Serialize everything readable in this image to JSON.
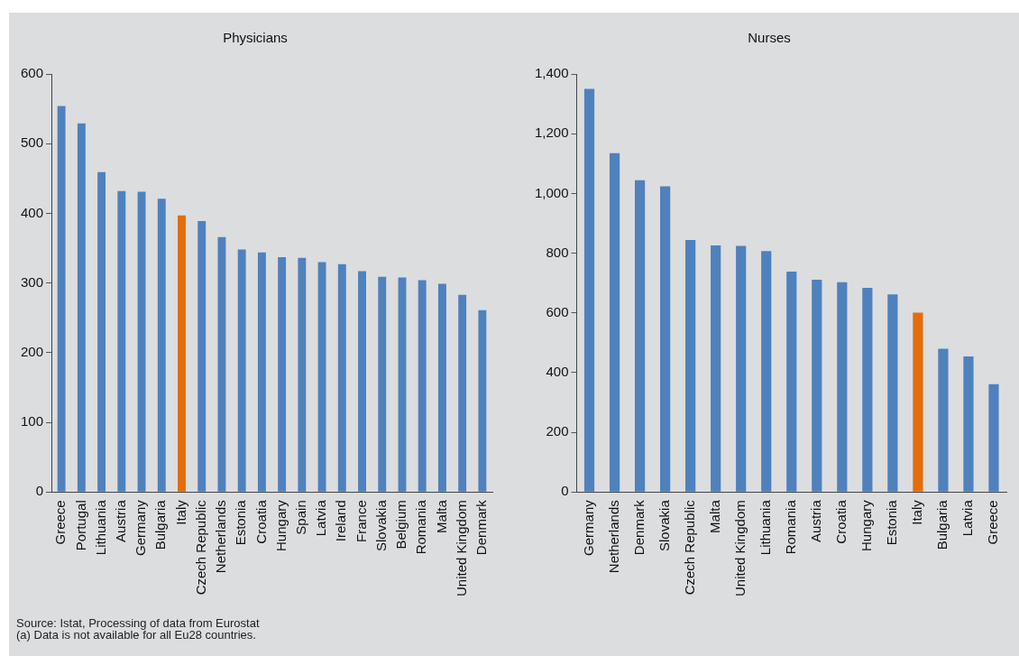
{
  "chart_data": [
    {
      "type": "bar",
      "title": "Physicians",
      "categories": [
        "Greece",
        "Portugal",
        "Lithuania",
        "Austria",
        "Germany",
        "Bulgaria",
        "Italy",
        "Czech Republic",
        "Netherlands",
        "Estonia",
        "Croatia",
        "Hungary",
        "Spain",
        "Latvia",
        "Ireland",
        "France",
        "Slovakia",
        "Belgium",
        "Romania",
        "Malta",
        "United Kingdom",
        "Denmark"
      ],
      "values": [
        554,
        529,
        459,
        432,
        431,
        421,
        397,
        389,
        366,
        348,
        344,
        337,
        336,
        330,
        327,
        317,
        309,
        308,
        304,
        299,
        283,
        261
      ],
      "colors": [
        "#4f81bd",
        "#4f81bd",
        "#4f81bd",
        "#4f81bd",
        "#4f81bd",
        "#4f81bd",
        "#e46c0a",
        "#4f81bd",
        "#4f81bd",
        "#4f81bd",
        "#4f81bd",
        "#4f81bd",
        "#4f81bd",
        "#4f81bd",
        "#4f81bd",
        "#4f81bd",
        "#4f81bd",
        "#4f81bd",
        "#4f81bd",
        "#4f81bd",
        "#4f81bd",
        "#4f81bd"
      ],
      "ylim": [
        0,
        600
      ],
      "yticks": [
        0,
        100,
        200,
        300,
        400,
        500,
        600
      ],
      "grid": false,
      "legend": false,
      "annotations": [
        "Source: Istat, Processing of data from Eurostat",
        "(a) Data is not available for all Eu28 countries."
      ]
    },
    {
      "type": "bar",
      "title": "Nurses",
      "categories": [
        "Germany",
        "Netherlands",
        "Denmark",
        "Slovakia",
        "Czech Republic",
        "Malta",
        "United Kingdom",
        "Lithuania",
        "Romania",
        "Austria",
        "Croatia",
        "Hungary",
        "Estonia",
        "Italy",
        "Bulgaria",
        "Latvia",
        "Greece"
      ],
      "values": [
        1350,
        1135,
        1044,
        1024,
        844,
        826,
        824,
        807,
        738,
        711,
        703,
        684,
        662,
        601,
        480,
        454,
        361
      ],
      "colors": [
        "#4f81bd",
        "#4f81bd",
        "#4f81bd",
        "#4f81bd",
        "#4f81bd",
        "#4f81bd",
        "#4f81bd",
        "#4f81bd",
        "#4f81bd",
        "#4f81bd",
        "#4f81bd",
        "#4f81bd",
        "#4f81bd",
        "#e46c0a",
        "#4f81bd",
        "#4f81bd",
        "#4f81bd"
      ],
      "ylim": [
        0,
        1400
      ],
      "yticks": [
        0,
        {
          "value": 200,
          "label": "200"
        },
        {
          "value": 400,
          "label": "400"
        },
        {
          "value": 600,
          "label": "600"
        },
        {
          "value": 800,
          "label": "800"
        },
        {
          "value": 1000,
          "label": "1,000"
        },
        {
          "value": 1200,
          "label": "1,200"
        },
        {
          "value": 1400,
          "label": "1,400"
        }
      ],
      "grid": false,
      "legend": false
    }
  ]
}
